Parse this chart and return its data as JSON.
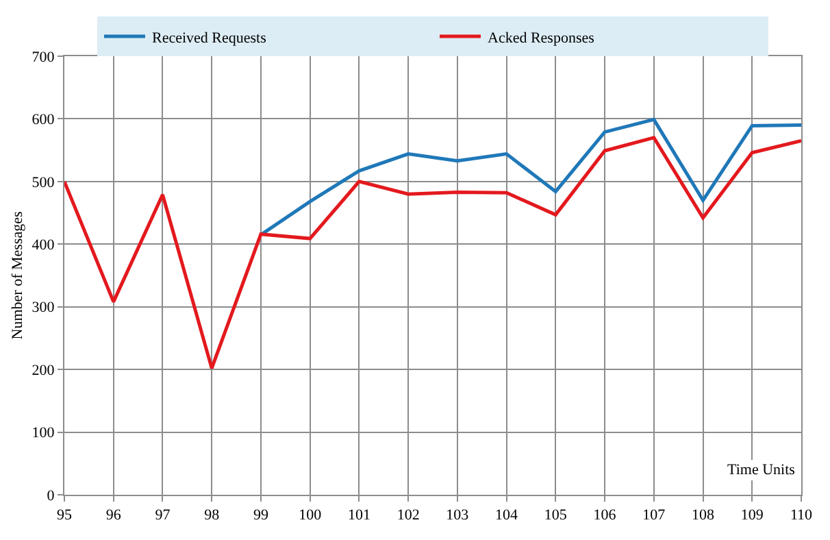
{
  "chart_data": {
    "type": "line",
    "xlabel": "Time Units",
    "ylabel": "Number of Messages",
    "x": [
      95,
      96,
      97,
      98,
      99,
      100,
      101,
      102,
      103,
      104,
      105,
      106,
      107,
      108,
      109,
      110
    ],
    "series": [
      {
        "name": "Received Requests",
        "color": "#1f78b8",
        "values": [
          null,
          null,
          null,
          null,
          415,
          468,
          517,
          544,
          533,
          544,
          484,
          579,
          599,
          470,
          589,
          590
        ]
      },
      {
        "name": "Acked Responses",
        "color": "#e3191e",
        "values": [
          500,
          308,
          479,
          202,
          416,
          409,
          500,
          480,
          483,
          482,
          447,
          549,
          570,
          442,
          546,
          565
        ]
      }
    ],
    "xlim": [
      95,
      110
    ],
    "xticks": [
      95,
      96,
      97,
      98,
      99,
      100,
      101,
      102,
      103,
      104,
      105,
      106,
      107,
      108,
      109,
      110
    ],
    "ylim": [
      0,
      700
    ],
    "yticks": [
      0,
      100,
      200,
      300,
      400,
      500,
      600,
      700
    ],
    "grid": true,
    "legend": "top",
    "marker": "none",
    "line_style": "solid"
  }
}
